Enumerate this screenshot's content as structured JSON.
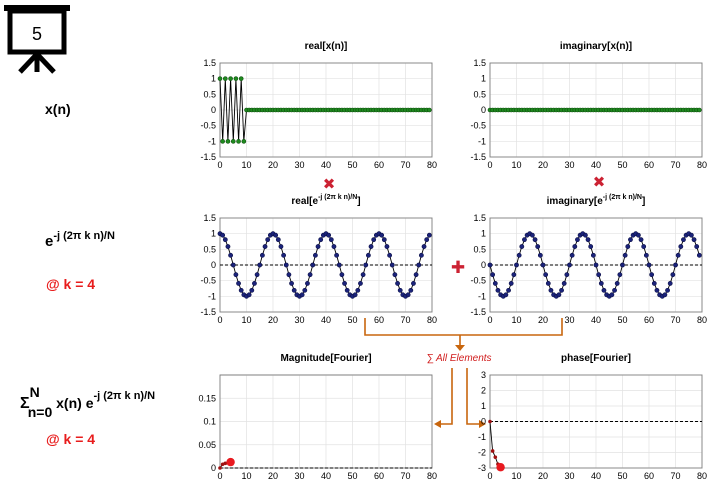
{
  "slide_number": "5",
  "rows": {
    "row1_label": "x(n)",
    "row2_label_base": "e",
    "row2_label_sup": "-j (2π k n)/N",
    "row2_k": "@ k = 4",
    "row3_sigma": "Σ",
    "row3_sup": "N",
    "row3_sub": "n=0",
    "row3_mid": " x(n) e",
    "row3_exp": "-j (2π k n)/N",
    "row3_k": "@ k = 4"
  },
  "operators": {
    "multiply_symbol": "✖",
    "plus_symbol": "✚",
    "sum_label": "∑ All Elements"
  },
  "colors": {
    "x_marker": "#1f8a1f",
    "exp_marker": "#1b237a",
    "result_marker": "#e8191f",
    "result_small": "#a01010",
    "line": "#000000",
    "arrow": "#c8660e",
    "red_label": "#e81c1c",
    "op_red": "#cc2233"
  },
  "chart_data": [
    {
      "id": "real_x",
      "type": "line",
      "title": "real[x(n)]",
      "title_sup": "",
      "xlim": [
        0,
        80
      ],
      "ylim": [
        -1.5,
        1.5
      ],
      "xticks": [
        "0",
        "10",
        "20",
        "30",
        "40",
        "50",
        "60",
        "70",
        "80"
      ],
      "yticks": [
        "1.5",
        "1",
        "0.5",
        "0",
        "-0.5",
        "-1",
        "-1.5"
      ],
      "signal": "square_burst",
      "n": 80,
      "burst_length": 10,
      "values_first": [
        1,
        -1,
        1,
        -1,
        1,
        -1,
        1,
        -1,
        1,
        -1
      ],
      "rest_value": 0,
      "dashed_zero": false
    },
    {
      "id": "imag_x",
      "type": "line",
      "title": "imaginary[x(n)]",
      "title_sup": "",
      "xlim": [
        0,
        80
      ],
      "ylim": [
        -1.5,
        1.5
      ],
      "xticks": [
        "0",
        "10",
        "20",
        "30",
        "40",
        "50",
        "60",
        "70",
        "80"
      ],
      "yticks": [
        "1.5",
        "1",
        "0.5",
        "0",
        "-0.5",
        "-1",
        "-1.5"
      ],
      "signal": "zero",
      "n": 80,
      "dashed_zero": false
    },
    {
      "id": "real_exp",
      "type": "line",
      "title": "real[e",
      "title_sup": "-j (2π k n)/N",
      "title_end": "]",
      "xlim": [
        0,
        80
      ],
      "ylim": [
        -1.5,
        1.5
      ],
      "xticks": [
        "0",
        "10",
        "20",
        "30",
        "40",
        "50",
        "60",
        "70",
        "80"
      ],
      "yticks": [
        "1.5",
        "1",
        "0.5",
        "0",
        "-0.5",
        "-1",
        "-1.5"
      ],
      "signal": "cos",
      "n": 80,
      "k": 4,
      "N": 80,
      "dashed_zero": true
    },
    {
      "id": "imag_exp",
      "type": "line",
      "title": "imaginary[e",
      "title_sup": "-j (2π k n)/N",
      "title_end": "]",
      "xlim": [
        0,
        80
      ],
      "ylim": [
        -1.5,
        1.5
      ],
      "xticks": [
        "0",
        "10",
        "20",
        "30",
        "40",
        "50",
        "60",
        "70",
        "80"
      ],
      "yticks": [
        "1.5",
        "1",
        "0.5",
        "0",
        "-0.5",
        "-1",
        "-1.5"
      ],
      "signal": "neg_sin",
      "n": 80,
      "k": 4,
      "N": 80,
      "dashed_zero": true
    },
    {
      "id": "magnitude",
      "type": "line",
      "title": "Magnitude[Fourier]",
      "title_sup": "",
      "xlim": [
        0,
        80
      ],
      "ylim": [
        0,
        0.2
      ],
      "xticks": [
        "0",
        "10",
        "20",
        "30",
        "40",
        "50",
        "60",
        "70",
        "80"
      ],
      "yticks": [
        "0.15",
        "0.1",
        "0.05",
        "0"
      ],
      "ytick_values": [
        0.15,
        0.1,
        0.05,
        0
      ],
      "x": [
        0,
        1,
        2,
        3,
        4
      ],
      "y": [
        0,
        0.008,
        0.01,
        0.011,
        0.0127
      ],
      "dashed_zero": true
    },
    {
      "id": "phase",
      "type": "line",
      "title": "phase[Fourier]",
      "title_sup": "",
      "xlim": [
        0,
        80
      ],
      "ylim": [
        -3,
        3
      ],
      "xticks": [
        "0",
        "10",
        "20",
        "30",
        "40",
        "50",
        "60",
        "70",
        "80"
      ],
      "yticks": [
        "3",
        "2",
        "1",
        "0",
        "-1",
        "-2",
        "-3"
      ],
      "ytick_values": [
        3,
        2,
        1,
        0,
        -1,
        -2,
        -3
      ],
      "x": [
        0,
        1,
        2,
        3,
        4
      ],
      "y": [
        0,
        -1.9,
        -2.3,
        -2.75,
        -2.95
      ],
      "dashed_zero": true
    }
  ]
}
